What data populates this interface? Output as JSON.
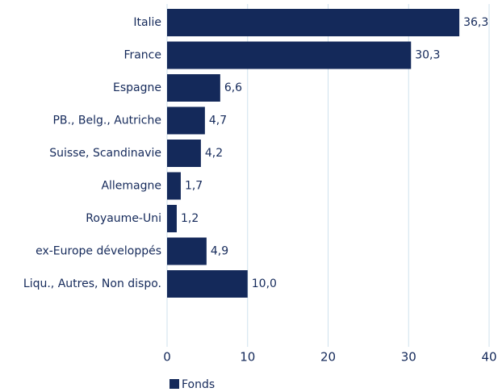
{
  "chart_data": {
    "type": "barh",
    "categories": [
      "Italie",
      "France",
      "Espagne",
      "PB., Belg., Autriche",
      "Suisse, Scandinavie",
      "Allemagne",
      "Royaume-Uni",
      "ex-Europe développés",
      "Liqu., Autres, Non dispo."
    ],
    "series": [
      {
        "name": "Fonds",
        "color": "#14295a",
        "values": [
          36.3,
          30.3,
          6.6,
          4.7,
          4.2,
          1.7,
          1.2,
          4.9,
          10.0
        ],
        "value_labels": [
          "36,3",
          "30,3",
          "6,6",
          "4,7",
          "4,2",
          "1,7",
          "1,2",
          "4,9",
          "10,0"
        ]
      }
    ],
    "xlim": [
      0,
      40
    ],
    "xticks": [
      0,
      10,
      20,
      30,
      40
    ],
    "grid": true,
    "legend": "bottom"
  }
}
